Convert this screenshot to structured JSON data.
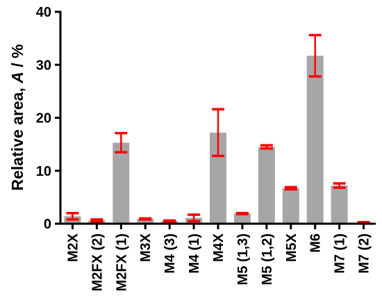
{
  "chart_data": {
    "type": "bar",
    "title": "",
    "xlabel": "",
    "ylabel": {
      "prefix": "Relative area, ",
      "symbol": "A",
      "suffix": " / %"
    },
    "ylim": [
      0,
      40
    ],
    "yticks": [
      0,
      10,
      20,
      30,
      40
    ],
    "grid": false,
    "legend": "none",
    "categories": [
      "M2X",
      "M2FX (2)",
      "M2FX (1)",
      "M3X",
      "M4 (3)",
      "M4 (1)",
      "M4X",
      "M5 (1,3)",
      "M5 (1,2)",
      "M5X",
      "M6",
      "M7 (1)",
      "M7 (2)"
    ],
    "values": [
      1.4,
      0.6,
      15.3,
      0.9,
      0.5,
      1.1,
      17.2,
      1.9,
      14.5,
      6.7,
      31.7,
      7.2,
      0.2
    ],
    "errors": [
      0.6,
      0.2,
      1.8,
      0.1,
      0.1,
      0.6,
      4.4,
      0.1,
      0.3,
      0.2,
      3.9,
      0.4,
      0.1
    ],
    "colors": {
      "bar": "#a6a6a6",
      "error_bar": "#ff0000",
      "axis": "#000000"
    }
  }
}
